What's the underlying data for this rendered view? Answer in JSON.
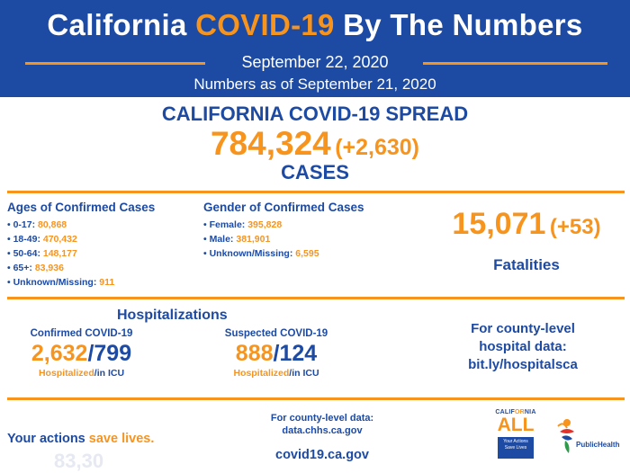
{
  "header": {
    "title_pre": "California ",
    "title_hl": "COVID-19",
    "title_post": " By The Numbers",
    "date": "September 22, 2020",
    "as_of": "Numbers as of September 21, 2020"
  },
  "spread": {
    "title": "CALIFORNIA COVID-19 SPREAD",
    "cases": "784,324",
    "cases_delta": "(+2,630)",
    "cases_label": "CASES"
  },
  "ages": {
    "title": "Ages of Confirmed Cases",
    "items": [
      {
        "label": "• 0-17: ",
        "value": "80,868"
      },
      {
        "label": "• 18-49: ",
        "value": "470,432"
      },
      {
        "label": "• 50-64: ",
        "value": "148,177"
      },
      {
        "label": "• 65+: ",
        "value": "83,936"
      },
      {
        "label": "• Unknown/Missing: ",
        "value": "911"
      }
    ]
  },
  "gender": {
    "title": "Gender of Confirmed Cases",
    "items": [
      {
        "label": "• Female: ",
        "value": "395,828"
      },
      {
        "label": "• Male: ",
        "value": "381,901"
      },
      {
        "label": "• Unknown/Missing: ",
        "value": "6,595"
      }
    ]
  },
  "fatalities": {
    "value": "15,071",
    "delta": "(+53)",
    "label": "Fatalities"
  },
  "hospitalizations": {
    "title": "Hospitalizations",
    "confirmed": {
      "label": "Confirmed COVID-19",
      "hospitalized": "2,632",
      "icu": "799",
      "sub_h": "Hospitalized",
      "sub_i": "/in ICU"
    },
    "suspected": {
      "label": "Suspected COVID-19",
      "hospitalized": "888",
      "icu": "124",
      "sub_h": "Hospitalized",
      "sub_i": "/in ICU"
    }
  },
  "county_hospital": {
    "line1": "For county-level",
    "line2": "hospital data:",
    "link": "bit.ly/hospitalsca"
  },
  "footer": {
    "actions_pre": "Your actions ",
    "actions_hl": "save lives.",
    "ghost": "83,30",
    "county_data_line1": "For county-level data:",
    "county_data_line2": "data.chhs.ca.gov",
    "site": "covid19.ca.gov",
    "logo_all": {
      "cal_a": "CALIF",
      "cal_b": "OR",
      "cal_c": "NIA",
      "all": "ALL",
      "box1": "Your Actions",
      "box2": "Save Lives"
    },
    "logo_ph": "PublicHealth"
  },
  "colors": {
    "blue": "#1d4aa3",
    "orange": "#f7941d"
  }
}
